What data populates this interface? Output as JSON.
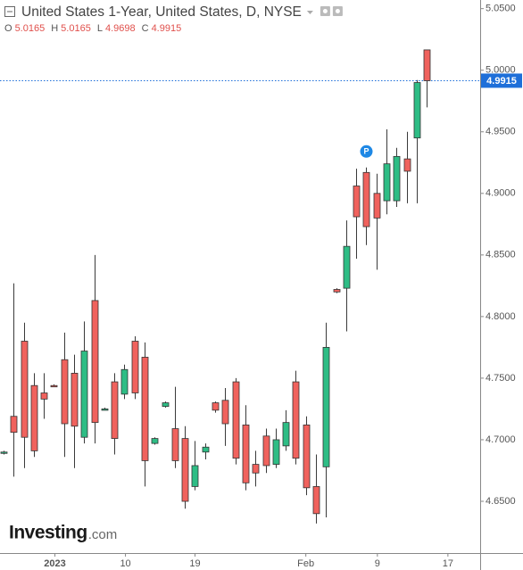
{
  "chart_data": {
    "type": "candlestick",
    "title": "United States 1-Year, United States, D, NYSE",
    "ohlc_header": [
      {
        "label": "O",
        "value": 5.0165
      },
      {
        "label": "H",
        "value": 5.0165
      },
      {
        "label": "L",
        "value": 4.9698
      },
      {
        "label": "C",
        "value": 4.9915
      }
    ],
    "up_color": "#2ebd85",
    "down_color": "#f0625d",
    "wick_color": "#3a3a3a",
    "last_price": 4.9915,
    "last_price_color": "#1e6fd9",
    "ylim": [
      4.608,
      5.057
    ],
    "yticks": [
      {
        "value": 4.65,
        "label": "4.6500"
      },
      {
        "value": 4.7,
        "label": "4.7000"
      },
      {
        "value": 4.75,
        "label": "4.7500"
      },
      {
        "value": 4.8,
        "label": "4.8000"
      },
      {
        "value": 4.85,
        "label": "4.8500"
      },
      {
        "value": 4.9,
        "label": "4.9000"
      },
      {
        "value": 4.95,
        "label": "4.9500"
      },
      {
        "value": 5.0,
        "label": "5.0000"
      },
      {
        "value": 5.05,
        "label": "5.0500"
      }
    ],
    "xlim": [
      -0.35,
      47.3
    ],
    "xticks": [
      {
        "value": 5.1,
        "label": "2023"
      },
      {
        "value": 12.1,
        "label": "10"
      },
      {
        "value": 19.0,
        "label": "19"
      },
      {
        "value": 30.0,
        "label": "Feb"
      },
      {
        "value": 37.1,
        "label": "9"
      },
      {
        "value": 44.1,
        "label": "17"
      }
    ],
    "open": [
      4.689,
      4.719,
      4.78,
      4.744,
      4.738,
      4.744,
      4.765,
      4.754,
      4.702,
      4.813,
      4.725,
      4.747,
      4.737,
      4.78,
      4.767,
      4.697,
      4.727,
      4.709,
      4.701,
      4.662,
      4.69,
      4.73,
      4.732,
      4.747,
      4.712,
      4.68,
      4.703,
      4.68,
      4.695,
      4.747,
      4.712,
      4.662,
      4.678,
      4.822,
      4.823,
      4.906,
      4.917,
      4.9,
      4.894,
      4.894,
      4.928,
      4.945,
      5.0165
    ],
    "high": [
      4.691,
      4.827,
      4.795,
      4.754,
      4.754,
      4.745,
      4.787,
      4.769,
      4.796,
      4.85,
      4.726,
      4.754,
      4.761,
      4.784,
      4.779,
      4.702,
      4.731,
      4.743,
      4.711,
      4.699,
      4.697,
      4.731,
      4.742,
      4.75,
      4.728,
      4.691,
      4.709,
      4.709,
      4.724,
      4.756,
      4.719,
      4.688,
      4.795,
      4.823,
      4.878,
      4.92,
      4.921,
      4.916,
      4.952,
      4.937,
      4.95,
      4.992,
      5.0165
    ],
    "low": [
      4.688,
      4.67,
      4.677,
      4.686,
      4.717,
      4.743,
      4.686,
      4.677,
      4.697,
      4.697,
      4.724,
      4.688,
      4.733,
      4.733,
      4.662,
      4.696,
      4.726,
      4.677,
      4.644,
      4.659,
      4.684,
      4.722,
      4.695,
      4.68,
      4.659,
      4.662,
      4.673,
      4.677,
      4.691,
      4.68,
      4.655,
      4.632,
      4.637,
      4.819,
      4.788,
      4.847,
      4.858,
      4.838,
      4.883,
      4.889,
      4.892,
      4.892,
      4.9698
    ],
    "close": [
      4.69,
      4.706,
      4.702,
      4.691,
      4.733,
      4.743,
      4.713,
      4.711,
      4.772,
      4.714,
      4.725,
      4.701,
      4.757,
      4.738,
      4.683,
      4.701,
      4.73,
      4.683,
      4.65,
      4.679,
      4.694,
      4.724,
      4.713,
      4.685,
      4.665,
      4.673,
      4.679,
      4.7,
      4.714,
      4.685,
      4.661,
      4.64,
      4.775,
      4.82,
      4.857,
      4.881,
      4.873,
      4.88,
      4.924,
      4.93,
      4.918,
      4.99,
      4.9915
    ],
    "annotations": [
      {
        "x": 36,
        "label": "P"
      }
    ],
    "watermark": {
      "brand": "Investing",
      "suffix": ".com"
    }
  }
}
